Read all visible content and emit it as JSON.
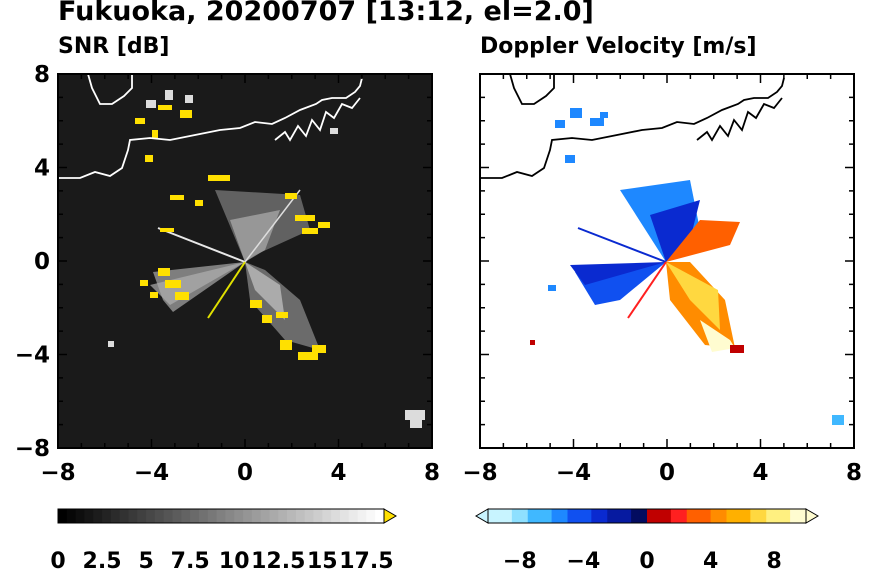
{
  "header": {
    "title": "Fukuoka, 20200707 [13:12, el=2.0]"
  },
  "panels": {
    "snr_title": "SNR [dB]",
    "dv_title": "Doppler Velocity [m/s]"
  },
  "chart_data": [
    {
      "type": "heatmap",
      "title": "SNR [dB]",
      "xlim": [
        -8,
        8
      ],
      "ylim": [
        -8,
        8
      ],
      "xticks": [
        "−8",
        "−4",
        "0",
        "4",
        "8"
      ],
      "yticks": [
        "8",
        "4",
        "0",
        "−4",
        "−8"
      ],
      "colorbar": {
        "min": 0,
        "max": 18.5,
        "levels": 37,
        "ticks": [
          "0",
          "2.5",
          "5",
          "7.5",
          "10",
          "12.5",
          "15",
          "17.5"
        ],
        "extend": "max",
        "cmap": [
          "#000000",
          "#ffffff"
        ],
        "over_color": "#ffe000"
      },
      "background_color": "#1a1a1a",
      "coastline_color": "#ffffff"
    },
    {
      "type": "heatmap",
      "title": "Doppler Velocity [m/s]",
      "xlim": [
        -8,
        8
      ],
      "ylim": [
        -8,
        8
      ],
      "xticks": [
        "−8",
        "−4",
        "0",
        "4",
        "8"
      ],
      "yticks": [
        "8",
        "4",
        "0",
        "−4",
        "−8"
      ],
      "colorbar": {
        "min": -10,
        "max": 10,
        "ticks": [
          "−8",
          "−4",
          "0",
          "4",
          "8"
        ],
        "extend": "both",
        "negative_colors": [
          "#c8f4ff",
          "#8ee0ff",
          "#40b8ff",
          "#1e88ff",
          "#1050f0",
          "#0a2ad0",
          "#061aa0",
          "#030c60"
        ],
        "positive_colors": [
          "#c00000",
          "#ff2020",
          "#ff6000",
          "#ff8c00",
          "#ffb000",
          "#ffd840",
          "#fff080",
          "#fffcd0"
        ]
      },
      "background_color": "#ffffff",
      "coastline_color": "#000000"
    }
  ]
}
